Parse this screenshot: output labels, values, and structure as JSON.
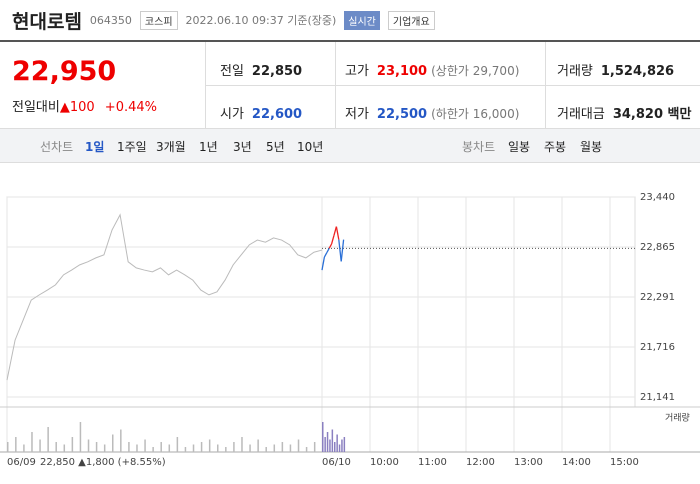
{
  "header": {
    "title": "현대로템",
    "code": "064350",
    "market": "코스피",
    "timestamp": "2022.06.10 09:37 기준(장중)",
    "realtime": "실시간",
    "company_info": "기업개요"
  },
  "quote": {
    "price": "22,950",
    "change_label": "전일대비",
    "change": "▲100",
    "change_pct": "+0.44%",
    "items": [
      {
        "label": "전일",
        "value": "22,850"
      },
      {
        "label": "고가",
        "value": "23,100",
        "extra": "(상한가 29,700)"
      },
      {
        "label": "거래량",
        "value": "1,524,826"
      },
      {
        "label": "시가",
        "value": "22,600"
      },
      {
        "label": "저가",
        "value": "22,500",
        "extra": "(하한가 16,000)"
      },
      {
        "label": "거래대금",
        "value": "34,820 백만"
      }
    ]
  },
  "tabs": {
    "line_label": "선차트",
    "line_tabs": [
      "1일",
      "1주일",
      "3개월",
      "1년",
      "3년",
      "5년",
      "10년"
    ],
    "candle_label": "봉차트",
    "candle_tabs": [
      "일봉",
      "주봉",
      "월봉"
    ]
  },
  "chart": {
    "ylim": [
      21141,
      23440
    ],
    "yticks": [
      {
        "value": 23440,
        "label": "23,440"
      },
      {
        "value": 22865,
        "label": "22,865"
      },
      {
        "value": 22291,
        "label": "22,291"
      },
      {
        "value": 21716,
        "label": "21,716"
      },
      {
        "value": 21141,
        "label": "21,141"
      }
    ],
    "prev_close": 22850,
    "prev_values": [
      21335,
      21795,
      22025,
      22255,
      22315,
      22370,
      22430,
      22545,
      22600,
      22660,
      22695,
      22740,
      22775,
      23060,
      23235,
      22695,
      22625,
      22600,
      22580,
      22625,
      22545,
      22600,
      22545,
      22485,
      22370,
      22315,
      22350,
      22485,
      22660,
      22775,
      22890,
      22945,
      22920,
      22970,
      22945,
      22890,
      22775,
      22740,
      22805,
      22830
    ],
    "today_values": [
      22600,
      22750,
      22800,
      22850,
      22900,
      23000,
      23100,
      22950,
      22700,
      22950
    ],
    "prev_volume": [
      4,
      6,
      3,
      8,
      5,
      10,
      4,
      3,
      6,
      12,
      5,
      4,
      3,
      7,
      9,
      4,
      3,
      5,
      2,
      4,
      3,
      6,
      2,
      3,
      4,
      5,
      3,
      2,
      4,
      6,
      3,
      5,
      2,
      3,
      4,
      3,
      5,
      2,
      4,
      6
    ],
    "today_volume": [
      12,
      6,
      8,
      5,
      9,
      4,
      7,
      3,
      5,
      6
    ],
    "volume_label": "거래량",
    "day_labels": [
      "06/09",
      "06/10"
    ],
    "xticks": [
      {
        "value": 60,
        "label": "10:00"
      },
      {
        "value": 120,
        "label": "11:00"
      },
      {
        "value": 180,
        "label": "12:00"
      },
      {
        "value": 240,
        "label": "13:00"
      },
      {
        "value": 300,
        "label": "14:00"
      },
      {
        "value": 360,
        "label": "15:00"
      }
    ],
    "summary": "22,850 ▲1,800 (+8.55%)"
  }
}
